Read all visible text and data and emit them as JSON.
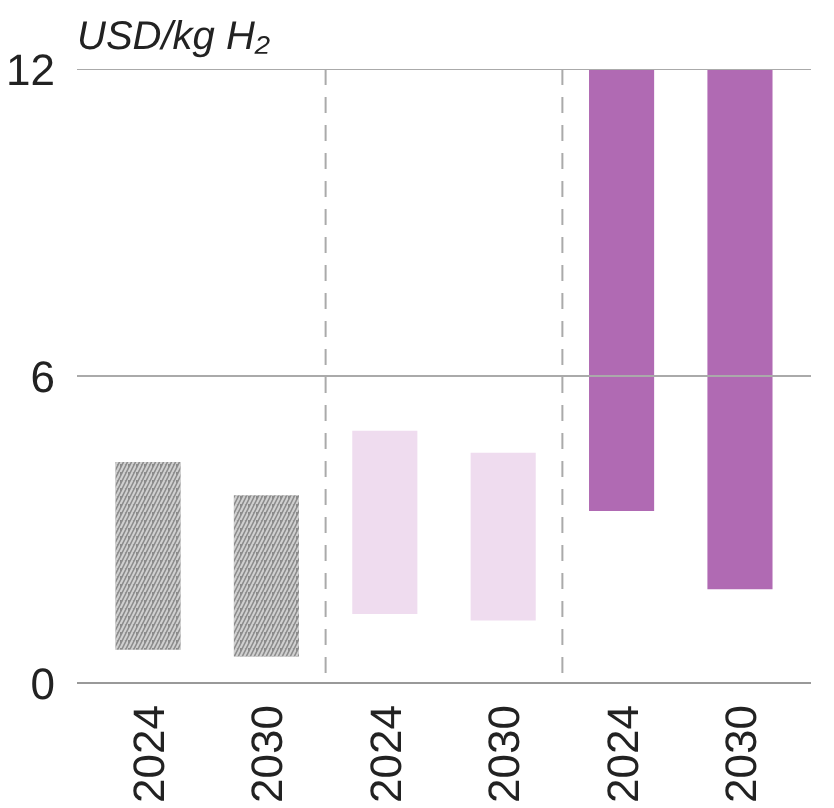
{
  "chart_data": {
    "type": "bar",
    "ylabel": "USD/kg H₂",
    "categories": [
      "2024",
      "2030",
      "2024",
      "2030",
      "2024",
      "2030"
    ],
    "base": [
      0.65,
      0.52,
      1.35,
      1.22,
      3.36,
      1.83
    ],
    "values": [
      3.67,
      3.15,
      3.58,
      3.28,
      8.64,
      10.17
    ],
    "colors": [
      "#8c8c8c",
      "#8c8c8c",
      "#efdcef",
      "#efdcef",
      "#b06ab3",
      "#b06ab3"
    ],
    "ylim": [
      0,
      12
    ],
    "yticks": [
      0,
      6,
      12
    ],
    "ref_lines": [
      {
        "axis": "y",
        "value": 6,
        "label": null,
        "color": "#aaaaaa",
        "line_style": "solid"
      },
      {
        "axis": "y",
        "value": 12,
        "label": null,
        "color": "#aaaaaa",
        "line_style": "solid"
      }
    ]
  }
}
